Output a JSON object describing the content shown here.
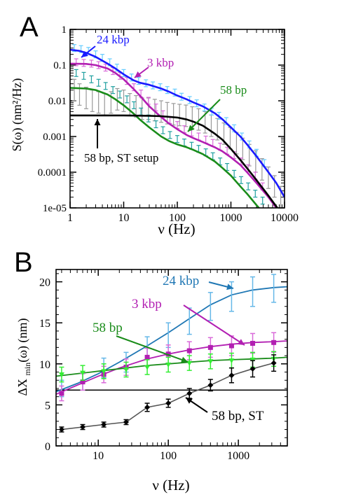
{
  "chart_data": [
    {
      "panel_label": "A",
      "type": "line",
      "x_scale": "log",
      "y_scale": "log",
      "xlim": [
        1,
        10000
      ],
      "ylim": [
        1e-05,
        1
      ],
      "xlabel": "ν (Hz)",
      "ylabel": "S(ω)  (nm²/Hz)",
      "xticks": [
        1,
        10,
        100,
        1000,
        10000
      ],
      "xtick_labels": [
        "1",
        "10",
        "100",
        "1000",
        "10000"
      ],
      "yticks": [
        1e-05,
        0.0001,
        0.001,
        0.01,
        0.1,
        1
      ],
      "ytick_labels": [
        "1e-05",
        "0.0001",
        "0.001",
        "0.01",
        "0.1",
        "1"
      ],
      "annotations": [
        "24 kbp",
        "3 kbp",
        "58 bp",
        "58 bp, ST setup"
      ],
      "series": [
        {
          "name": "24 kbp",
          "color": "#1a1aff",
          "fit": {
            "x": [
              1,
              1.5,
              2,
              3,
              5,
              7,
              10,
              15,
              20,
              30,
              50,
              70,
              100,
              150,
              200,
              300,
              500,
              700,
              1000,
              1500,
              2000,
              3000,
              5000,
              7000,
              10000
            ],
            "y": [
              0.27,
              0.25,
              0.22,
              0.17,
              0.11,
              0.08,
              0.055,
              0.038,
              0.032,
              0.028,
              0.022,
              0.018,
              0.014,
              0.011,
              0.009,
              0.007,
              0.0045,
              0.003,
              0.0018,
              0.001,
              0.0006,
              0.00028,
              0.0001,
              5e-05,
              2e-05
            ]
          },
          "points": {
            "x": [
              1.2,
              1.6,
              2.2,
              3,
              4,
              5.5,
              7.5,
              10,
              14,
              19,
              26,
              35,
              48,
              65,
              90,
              120,
              170,
              230,
              320,
              440,
              600,
              820,
              1150,
              1600,
              2200,
              3000,
              4200
            ],
            "y": [
              0.3,
              0.28,
              0.25,
              0.2,
              0.16,
              0.12,
              0.085,
              0.06,
              0.045,
              0.036,
              0.031,
              0.027,
              0.024,
              0.02,
              0.017,
              0.013,
              0.0105,
              0.0085,
              0.0065,
              0.005,
              0.0038,
              0.0027,
              0.0017,
              0.001,
              0.0006,
              0.00035,
              0.00018
            ],
            "color": "#66ccff"
          }
        },
        {
          "name": "3 kbp",
          "color": "#b21fb2",
          "fit": {
            "x": [
              1,
              2,
              3,
              5,
              7,
              10,
              15,
              20,
              30,
              50,
              70,
              100,
              150,
              200,
              300,
              500,
              700,
              1000,
              1500,
              2000,
              3000,
              5000,
              7000,
              10000
            ],
            "y": [
              0.11,
              0.108,
              0.1,
              0.08,
              0.06,
              0.04,
              0.022,
              0.014,
              0.007,
              0.0035,
              0.0023,
              0.0016,
              0.0011,
              0.0009,
              0.0007,
              0.0005,
              0.00038,
              0.00026,
              0.00016,
              0.0001,
              5e-05,
              2e-05,
              1e-05,
              5e-06
            ]
          },
          "points": {
            "x": [
              1.3,
              1.8,
              2.5,
              3.4,
              4.6,
              6.3,
              8.5,
              11.5,
              15.5,
              21,
              29,
              40,
              54,
              73,
              100,
              135,
              185,
              250,
              340,
              460,
              630,
              850,
              1150,
              1550,
              2100,
              2850,
              3900
            ],
            "y": [
              0.12,
              0.115,
              0.11,
              0.1,
              0.085,
              0.068,
              0.05,
              0.036,
              0.024,
              0.016,
              0.01,
              0.0065,
              0.0042,
              0.0029,
              0.0021,
              0.0016,
              0.0013,
              0.001,
              0.00082,
              0.00066,
              0.00052,
              0.0004,
              0.0003,
              0.0002,
              0.00013,
              8e-05,
              4e-05
            ],
            "color": "#d96ad9"
          }
        },
        {
          "name": "58 bp",
          "color": "#1a8c1a",
          "fit": {
            "x": [
              1,
              2,
              3,
              5,
              7,
              10,
              15,
              20,
              30,
              50,
              70,
              100,
              150,
              200,
              300,
              500,
              700,
              1000,
              1500,
              2000,
              3000,
              5000,
              7000,
              10000
            ],
            "y": [
              0.023,
              0.022,
              0.02,
              0.015,
              0.011,
              0.0075,
              0.0045,
              0.003,
              0.0018,
              0.001,
              0.00075,
              0.0006,
              0.0005,
              0.00042,
              0.00032,
              0.0002,
              0.00013,
              8e-05,
              4e-05,
              2.5e-05,
              1.2e-05,
              5e-06,
              3e-06,
              1.5e-06
            ]
          },
          "points": {
            "x": [
              1.3,
              1.8,
              2.5,
              3.4,
              4.6,
              6.3,
              8.5,
              11.5,
              15.5,
              21,
              29,
              40,
              54,
              73,
              100,
              135,
              185,
              250,
              340,
              460,
              630,
              850,
              1150,
              1550,
              2100,
              2850,
              3900
            ],
            "y": [
              0.06,
              0.05,
              0.04,
              0.032,
              0.026,
              0.02,
              0.015,
              0.011,
              0.0075,
              0.005,
              0.0032,
              0.0022,
              0.0015,
              0.0011,
              0.00085,
              0.00068,
              0.00055,
              0.00045,
              0.00036,
              0.00028,
              0.0002,
              0.00014,
              9e-05,
              6e-05,
              4e-05,
              2.5e-05,
              1.6e-05
            ],
            "color": "#20a0a0"
          }
        },
        {
          "name": "58 bp, ST setup",
          "color": "#000000",
          "fit": {
            "x": [
              1,
              3,
              10,
              30,
              50,
              100,
              150,
              200,
              300,
              500,
              700,
              1000,
              1500,
              2000,
              3000,
              5000,
              7000,
              10000
            ],
            "y": [
              0.0039,
              0.0039,
              0.0039,
              0.0038,
              0.0037,
              0.0034,
              0.003,
              0.0026,
              0.002,
              0.0012,
              0.0008,
              0.00045,
              0.00022,
              0.00013,
              6e-05,
              2.2e-05,
              1.1e-05,
              5.5e-06
            ]
          },
          "points": {
            "x": [
              1.2,
              1.5,
              2,
              2.6,
              3.4,
              4.4,
              5.8,
              7.6,
              10,
              13,
              17,
              22,
              29,
              38,
              50,
              65,
              85,
              110,
              145,
              190,
              250,
              330,
              430,
              560,
              740,
              970,
              1270,
              1660,
              2200,
              2900,
              3800,
              5000,
              6500,
              8500
            ],
            "y": [
              0.02,
              0.015,
              0.012,
              0.01,
              0.009,
              0.008,
              0.009,
              0.011,
              0.01,
              0.008,
              0.007,
              0.006,
              0.006,
              0.0055,
              0.005,
              0.0045,
              0.0042,
              0.004,
              0.0038,
              0.0034,
              0.003,
              0.0025,
              0.002,
              0.0016,
              0.0012,
              0.0009,
              0.00065,
              0.00045,
              0.0003,
              0.0002,
              0.00012,
              7e-05,
              4e-05,
              2e-05
            ],
            "color": "#999999"
          }
        }
      ]
    },
    {
      "panel_label": "B",
      "type": "line",
      "x_scale": "log",
      "y_scale": "linear",
      "xlim": [
        2.5,
        5000
      ],
      "ylim": [
        0,
        21.5
      ],
      "xlabel": "ν (Hz)",
      "ylabel": "ΔX_min(ω)  (nm)",
      "xticks": [
        10,
        100,
        1000
      ],
      "xtick_labels": [
        "10",
        "100",
        "1000"
      ],
      "yticks": [
        0,
        5,
        10,
        15,
        20
      ],
      "ytick_labels": [
        "0",
        "5",
        "10",
        "15",
        "20"
      ],
      "hline": 6.8,
      "annotations": [
        "24 kbp",
        "3 kbp",
        "58 bp",
        "58 bp, ST"
      ],
      "series": [
        {
          "name": "24 kbp",
          "color": "#1f77b4",
          "errcolor": "#66b8e8",
          "fit": {
            "x": [
              2.5,
              5,
              10,
              20,
              50,
              100,
              200,
              400,
              800,
              1600,
              3200,
              5000
            ],
            "y": [
              6.6,
              7.6,
              8.8,
              10.2,
              12.2,
              13.8,
              15.5,
              17.2,
              18.4,
              19.0,
              19.3,
              19.4
            ]
          },
          "points": {
            "x": [
              3,
              6,
              12,
              25,
              50,
              100,
              200,
              400,
              800,
              1600,
              3200
            ],
            "y": [
              7.0,
              7.8,
              9.5,
              10.2,
              12.0,
              13.5,
              15.2,
              17.0,
              18.2,
              18.8,
              19.2
            ],
            "err": [
              1.0,
              1.0,
              1.2,
              1.2,
              1.3,
              1.5,
              1.6,
              1.7,
              1.8,
              1.8,
              1.7
            ]
          }
        },
        {
          "name": "3 kbp",
          "color": "#b21fb2",
          "errcolor": "#d96ad9",
          "fit": {
            "x": [
              2.5,
              5,
              10,
              20,
              50,
              100,
              200,
              400,
              800,
              1600,
              3200,
              5000
            ],
            "y": [
              6.3,
              7.4,
              8.5,
              9.5,
              10.6,
              11.2,
              11.7,
              12.1,
              12.4,
              12.6,
              12.7,
              12.8
            ]
          },
          "points": {
            "x": [
              3,
              6,
              12,
              25,
              50,
              100,
              200,
              400,
              800,
              1600,
              3200
            ],
            "y": [
              6.4,
              7.8,
              8.7,
              9.6,
              10.8,
              11.2,
              11.6,
              12.0,
              12.2,
              12.5,
              12.6
            ],
            "err": [
              0.9,
              1.0,
              1.0,
              1.0,
              1.1,
              1.1,
              1.1,
              1.2,
              1.2,
              1.2,
              1.2
            ]
          }
        },
        {
          "name": "58 bp",
          "color": "#1a8c1a",
          "errcolor": "#33ee33",
          "fit": {
            "x": [
              2.5,
              5,
              10,
              20,
              50,
              100,
              200,
              400,
              800,
              1600,
              3200,
              5000
            ],
            "y": [
              8.5,
              8.8,
              9.1,
              9.4,
              9.8,
              10.0,
              10.2,
              10.4,
              10.5,
              10.6,
              10.7,
              10.8
            ]
          },
          "points": {
            "x": [
              3,
              6,
              12,
              25,
              50,
              100,
              200,
              400,
              800,
              1600,
              3200
            ],
            "y": [
              8.7,
              8.9,
              9.1,
              9.3,
              9.6,
              9.9,
              10.1,
              10.3,
              10.4,
              10.5,
              10.6
            ],
            "err": [
              0.9,
              0.9,
              0.9,
              0.9,
              0.9,
              0.9,
              0.9,
              0.9,
              0.9,
              0.9,
              0.9
            ]
          }
        },
        {
          "name": "58 bp, ST",
          "color": "#555555",
          "errcolor": "#000000",
          "fit": null,
          "points": {
            "x": [
              3,
              6,
              12,
              25,
              50,
              100,
              200,
              400,
              800,
              1600,
              3200
            ],
            "y": [
              2.0,
              2.3,
              2.6,
              2.9,
              4.7,
              5.2,
              6.4,
              7.4,
              8.6,
              9.4,
              10.1
            ],
            "err": [
              0.3,
              0.3,
              0.3,
              0.3,
              0.5,
              0.5,
              0.6,
              0.7,
              0.9,
              1.0,
              1.0
            ]
          }
        }
      ]
    }
  ]
}
